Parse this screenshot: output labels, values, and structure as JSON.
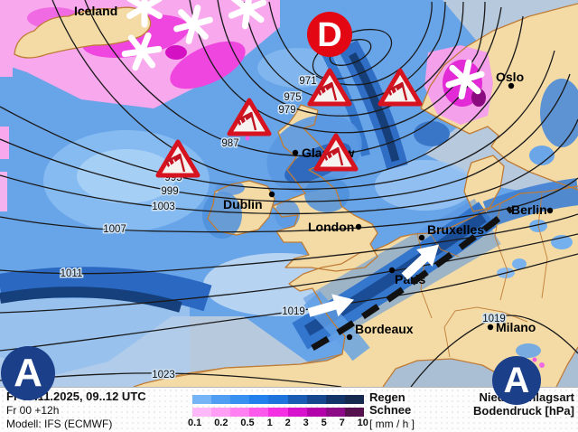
{
  "map": {
    "region_label": "Iceland",
    "low_center": {
      "label": "D"
    },
    "high_centers": [
      {
        "label": "A"
      },
      {
        "label": "A"
      }
    ],
    "cities": [
      {
        "name": "Oslo"
      },
      {
        "name": "Glasgow"
      },
      {
        "name": "Dublin"
      },
      {
        "name": "London"
      },
      {
        "name": "Bruxelles"
      },
      {
        "name": "Berlin"
      },
      {
        "name": "Paris"
      },
      {
        "name": "Bordeaux"
      },
      {
        "name": "Milano"
      }
    ],
    "isobar_labels": [
      "971",
      "975",
      "979",
      "987",
      "995",
      "999",
      "1003",
      "1007",
      "1011",
      "1019",
      "1019",
      "1023"
    ]
  },
  "info": {
    "date_line": "Fr 07.11.2025, 09..12 UTC",
    "run_line": "Fr 00 +12h",
    "model_line": "Modell: IFS (ECMWF)"
  },
  "legend": {
    "rain_label": "Regen",
    "snow_label": "Schnee",
    "unit_label": "[ mm / h ]",
    "type_label": "Niederschlagsart",
    "pressure_label": "Bodendruck [hPa]",
    "ticks": [
      "0.1",
      "0.2",
      "0.5",
      "1",
      "2",
      "3",
      "5",
      "7",
      "10"
    ],
    "rain_colors": [
      "#76b4f8",
      "#509ef4",
      "#3890f0",
      "#2280ec",
      "#1e74dc",
      "#1a5cb4",
      "#164890",
      "#123468",
      "#16294e"
    ],
    "snow_colors": [
      "#ffb8f8",
      "#ff9ef4",
      "#ff80f0",
      "#fc58ea",
      "#f430e2",
      "#d812cc",
      "#b402aa",
      "#8c0a86",
      "#56104e"
    ]
  },
  "colors": {
    "land": "#f4dba6",
    "sea": "#b7c9dd",
    "coast": "#bf7c36",
    "low_red": "#e30613",
    "high_blue": "#1c3f8a",
    "front_black": "#111111"
  }
}
